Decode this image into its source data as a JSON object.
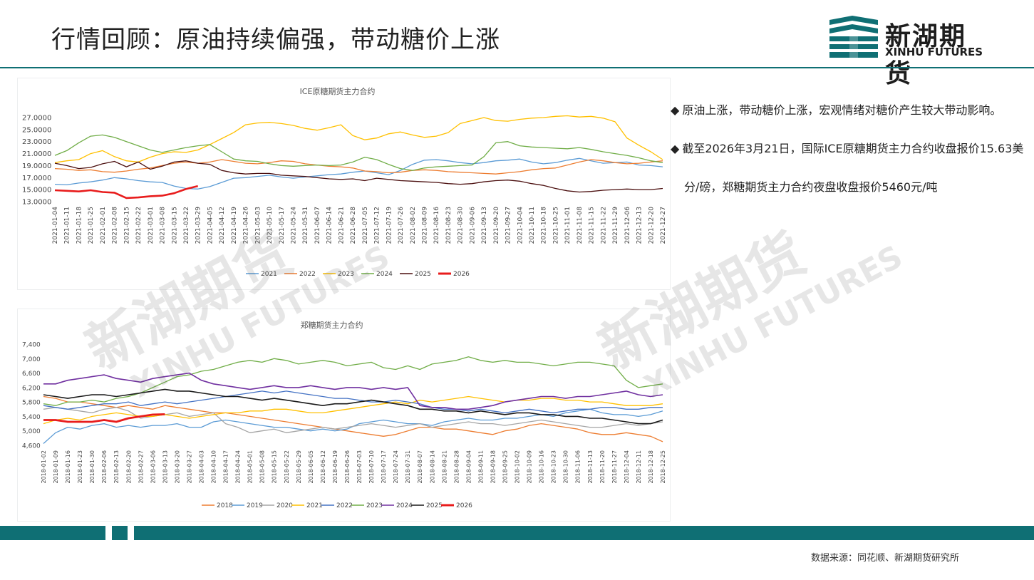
{
  "header": {
    "title": "行情回顾：原油持续偏强，带动糖价上涨",
    "logo_cn": "新湖期货",
    "logo_en": "XINHU FUTURES",
    "brand_color": "#0f6f74"
  },
  "watermark": {
    "cn": "新湖期货",
    "en": "XINHU FUTURES"
  },
  "bullets": [
    "原油上涨，带动糖价上涨，宏观情绪对糖价产生较大带动影响。",
    "截至2026年3月21日，国际ICE原糖期货主力合约收盘报价15.63美分/磅，郑糖期货主力合约夜盘收盘报价5460元/吨"
  ],
  "footer": {
    "source": "数据来源：同花顺、新湖期货研究所"
  },
  "chart_data": [
    {
      "type": "line",
      "title": "ICE原糖期货主力合约",
      "ylim": [
        13,
        27
      ],
      "yticks": [
        "27.0000",
        "25.0000",
        "23.0000",
        "21.0000",
        "19.0000",
        "17.0000",
        "15.0000",
        "13.0000"
      ],
      "x_ticks": [
        "2021-01-04",
        "2021-01-11",
        "2021-01-18",
        "2021-01-25",
        "2021-02-01",
        "2021-02-08",
        "2021-02-15",
        "2021-02-22",
        "2021-03-01",
        "2021-03-08",
        "2021-03-15",
        "2021-03-22",
        "2021-03-29",
        "2021-04-05",
        "2021-04-12",
        "2021-04-19",
        "2021-04-26",
        "2021-05-03",
        "2021-05-10",
        "2021-05-17",
        "2021-05-24",
        "2021-05-31",
        "2021-06-07",
        "2021-06-14",
        "2021-06-21",
        "2021-06-28",
        "2021-07-05",
        "2021-07-12",
        "2021-07-19",
        "2021-07-26",
        "2021-08-02",
        "2021-08-09",
        "2021-08-16",
        "2021-08-23",
        "2021-08-30",
        "2021-09-06",
        "2021-09-13",
        "2021-09-20",
        "2021-09-27",
        "2021-10-04",
        "2021-10-11",
        "2021-10-18",
        "2021-10-25",
        "2021-11-01",
        "2021-11-08",
        "2021-11-15",
        "2021-11-22",
        "2021-11-29",
        "2021-12-06",
        "2021-12-13",
        "2021-12-20",
        "2021-12-27"
      ],
      "series": [
        {
          "name": "2021",
          "color": "#5b9bd5",
          "width": 1.3,
          "values": [
            15.9,
            15.8,
            16.1,
            16.3,
            16.6,
            17.0,
            16.8,
            16.5,
            16.3,
            16.2,
            15.6,
            15.2,
            15.1,
            15.5,
            16.2,
            16.9,
            17.0,
            17.2,
            17.4,
            17.1,
            16.9,
            17.1,
            17.3,
            17.5,
            17.6,
            17.9,
            18.1,
            17.8,
            17.5,
            18.2,
            19.2,
            19.9,
            20.0,
            19.8,
            19.5,
            19.3,
            19.5,
            19.8,
            19.9,
            20.1,
            19.6,
            19.3,
            19.5,
            19.9,
            20.2,
            19.8,
            19.4,
            19.5,
            19.6,
            19.1,
            19.0,
            18.8
          ]
        },
        {
          "name": "2022",
          "color": "#ed7d31",
          "width": 1.3,
          "values": [
            18.5,
            18.4,
            18.2,
            18.3,
            18.0,
            17.9,
            18.1,
            18.4,
            18.6,
            19.0,
            19.4,
            19.6,
            19.4,
            19.6,
            20.0,
            19.7,
            19.4,
            19.3,
            19.5,
            19.8,
            19.7,
            19.3,
            19.1,
            18.9,
            18.8,
            18.6,
            18.1,
            18.0,
            17.8,
            17.9,
            18.2,
            18.3,
            18.2,
            18.0,
            17.9,
            17.8,
            17.7,
            17.6,
            17.8,
            18.0,
            18.3,
            18.5,
            18.6,
            19.1,
            19.6,
            20.0,
            19.8,
            19.5,
            19.3,
            19.4,
            19.6,
            19.8
          ]
        },
        {
          "name": "2023",
          "color": "#ffc000",
          "width": 1.3,
          "values": [
            19.5,
            19.8,
            20.0,
            21.0,
            21.5,
            20.5,
            19.8,
            19.6,
            20.4,
            21.0,
            21.3,
            21.2,
            21.6,
            22.5,
            23.5,
            24.5,
            25.8,
            26.1,
            26.2,
            26.0,
            25.7,
            25.2,
            24.9,
            25.3,
            25.8,
            24.0,
            23.3,
            23.6,
            24.3,
            24.6,
            24.1,
            23.7,
            23.9,
            24.5,
            26.0,
            26.5,
            27.0,
            26.5,
            26.4,
            26.7,
            26.9,
            27.0,
            27.2,
            27.3,
            27.1,
            27.2,
            26.9,
            26.3,
            23.6,
            22.4,
            21.3,
            20.0
          ]
        },
        {
          "name": "2024",
          "color": "#70ad47",
          "width": 1.3,
          "values": [
            20.7,
            21.5,
            22.8,
            23.9,
            24.1,
            23.7,
            23.0,
            22.3,
            21.6,
            21.2,
            21.6,
            22.0,
            22.3,
            22.5,
            21.3,
            20.1,
            19.8,
            19.7,
            19.3,
            19.0,
            18.9,
            19.0,
            19.1,
            19.0,
            19.1,
            19.6,
            20.4,
            20.0,
            19.2,
            18.5,
            18.2,
            18.6,
            18.8,
            18.9,
            19.0,
            19.1,
            20.5,
            22.8,
            23.0,
            22.3,
            22.1,
            22.0,
            21.9,
            21.8,
            22.0,
            21.7,
            21.3,
            21.0,
            20.7,
            20.3,
            19.8,
            19.5
          ]
        },
        {
          "name": "2025",
          "color": "#4b0f0f",
          "width": 1.3,
          "values": [
            19.4,
            19.0,
            18.5,
            18.7,
            19.3,
            19.7,
            18.8,
            19.6,
            18.4,
            18.9,
            19.6,
            19.8,
            19.4,
            19.2,
            18.2,
            17.8,
            17.6,
            17.7,
            17.7,
            17.4,
            17.3,
            17.2,
            17.0,
            16.8,
            16.7,
            16.8,
            16.5,
            16.9,
            16.7,
            16.5,
            16.4,
            16.3,
            16.2,
            16.0,
            15.9,
            16.0,
            16.3,
            16.5,
            16.6,
            16.4,
            16.0,
            15.7,
            15.2,
            14.8,
            14.6,
            14.7,
            14.9,
            15.0,
            15.1,
            15.0,
            15.0,
            15.2
          ]
        },
        {
          "name": "2026",
          "color": "#e81c1c",
          "width": 2.6,
          "values": [
            14.9,
            14.8,
            14.7,
            14.9,
            14.6,
            14.5,
            13.6,
            13.7,
            13.9,
            14.0,
            14.4,
            15.1,
            15.6
          ]
        }
      ],
      "legend": "bottom"
    },
    {
      "type": "line",
      "title": "郑糖期货主力合约",
      "ylim": [
        4600,
        7400
      ],
      "yticks": [
        "7,400",
        "7,000",
        "6,600",
        "6,200",
        "5,800",
        "5,400",
        "5,000",
        "4,600"
      ],
      "x_ticks": [
        "2018-01-02",
        "2018-01-09",
        "2018-01-16",
        "2018-01-23",
        "2018-01-30",
        "2018-02-06",
        "2018-02-13",
        "2018-02-20",
        "2018-02-27",
        "2018-03-06",
        "2018-03-13",
        "2018-03-20",
        "2018-03-27",
        "2018-04-03",
        "2018-04-10",
        "2018-04-17",
        "2018-04-24",
        "2018-05-01",
        "2018-05-08",
        "2018-05-15",
        "2018-05-22",
        "2018-05-29",
        "2018-06-05",
        "2018-06-12",
        "2018-06-19",
        "2018-06-26",
        "2018-07-03",
        "2018-07-10",
        "2018-07-17",
        "2018-07-24",
        "2018-07-31",
        "2018-08-07",
        "2018-08-14",
        "2018-08-21",
        "2018-08-28",
        "2018-09-04",
        "2018-09-11",
        "2018-09-18",
        "2018-09-25",
        "2018-10-02",
        "2018-10-09",
        "2018-10-16",
        "2018-10-23",
        "2018-10-30",
        "2018-11-06",
        "2018-11-13",
        "2018-11-20",
        "2018-11-27",
        "2018-12-04",
        "2018-12-11",
        "2018-12-18",
        "2018-12-25"
      ],
      "series": [
        {
          "name": "2018",
          "color": "#ed7d31",
          "width": 1.3,
          "values": [
            5950,
            5900,
            5800,
            5800,
            5750,
            5700,
            5650,
            5700,
            5650,
            5600,
            5700,
            5650,
            5600,
            5550,
            5500,
            5500,
            5450,
            5400,
            5350,
            5300,
            5250,
            5200,
            5150,
            5100,
            5050,
            5000,
            4950,
            4900,
            4850,
            4900,
            5000,
            5100,
            5100,
            5050,
            5050,
            5000,
            4950,
            4900,
            5000,
            5050,
            5150,
            5200,
            5150,
            5100,
            5050,
            4950,
            4900,
            4900,
            4950,
            4900,
            4850,
            4700
          ]
        },
        {
          "name": "2019",
          "color": "#5b9bd5",
          "width": 1.3,
          "values": [
            4650,
            4950,
            5100,
            5050,
            5150,
            5200,
            5100,
            5150,
            5100,
            5150,
            5150,
            5200,
            5100,
            5100,
            5250,
            5300,
            5250,
            5200,
            5150,
            5100,
            5100,
            5050,
            5000,
            5050,
            5000,
            5050,
            5200,
            5250,
            5300,
            5250,
            5200,
            5200,
            5150,
            5250,
            5300,
            5350,
            5300,
            5300,
            5350,
            5350,
            5400,
            5450,
            5400,
            5500,
            5550,
            5600,
            5500,
            5450,
            5450,
            5400,
            5450,
            5550
          ]
        },
        {
          "name": "2020",
          "color": "#a5a5a5",
          "width": 1.3,
          "values": [
            5600,
            5650,
            5600,
            5550,
            5500,
            5600,
            5650,
            5550,
            5350,
            5400,
            5450,
            5500,
            5400,
            5450,
            5500,
            5200,
            5100,
            4950,
            5000,
            5050,
            4950,
            5000,
            5050,
            5100,
            5050,
            5100,
            5150,
            5200,
            5150,
            5100,
            5150,
            5200,
            5100,
            5150,
            5200,
            5250,
            5200,
            5200,
            5150,
            5200,
            5250,
            5300,
            5250,
            5200,
            5150,
            5100,
            5100,
            5150,
            5200,
            5150,
            5200,
            5250
          ]
        },
        {
          "name": "2021",
          "color": "#ffc000",
          "width": 1.3,
          "values": [
            5200,
            5300,
            5350,
            5300,
            5400,
            5450,
            5500,
            5450,
            5400,
            5400,
            5450,
            5400,
            5350,
            5400,
            5450,
            5500,
            5500,
            5550,
            5550,
            5600,
            5600,
            5550,
            5500,
            5500,
            5550,
            5600,
            5650,
            5700,
            5750,
            5800,
            5750,
            5850,
            5800,
            5850,
            5900,
            5950,
            5900,
            5850,
            5800,
            5850,
            5850,
            5900,
            5900,
            5850,
            5850,
            5800,
            5800,
            5750,
            5700,
            5700,
            5700,
            5750
          ]
        },
        {
          "name": "2022",
          "color": "#4472c4",
          "width": 1.3,
          "values": [
            5700,
            5650,
            5600,
            5650,
            5700,
            5750,
            5750,
            5800,
            5700,
            5750,
            5800,
            5750,
            5800,
            5850,
            5900,
            5950,
            6000,
            6050,
            6100,
            6050,
            6100,
            6050,
            6000,
            5950,
            5900,
            5900,
            5850,
            5800,
            5800,
            5850,
            5800,
            5750,
            5650,
            5600,
            5600,
            5550,
            5600,
            5550,
            5500,
            5550,
            5600,
            5550,
            5500,
            5550,
            5600,
            5600,
            5650,
            5650,
            5600,
            5600,
            5650,
            5650
          ]
        },
        {
          "name": "2023",
          "color": "#70ad47",
          "width": 1.3,
          "values": [
            5750,
            5700,
            5800,
            5800,
            5850,
            5800,
            5900,
            5950,
            6050,
            6200,
            6350,
            6500,
            6550,
            6650,
            6700,
            6800,
            6900,
            6950,
            6900,
            7000,
            6950,
            6850,
            6900,
            6950,
            6900,
            6800,
            6850,
            6900,
            6750,
            6700,
            6800,
            6700,
            6850,
            6900,
            6950,
            7050,
            6950,
            6900,
            6950,
            6900,
            6900,
            6850,
            6800,
            6850,
            6900,
            6900,
            6850,
            6800,
            6400,
            6200,
            6250,
            6300
          ]
        },
        {
          "name": "2024",
          "color": "#7030a0",
          "width": 1.6,
          "values": [
            6300,
            6300,
            6400,
            6450,
            6500,
            6550,
            6450,
            6400,
            6350,
            6450,
            6500,
            6550,
            6600,
            6400,
            6300,
            6250,
            6200,
            6150,
            6200,
            6250,
            6200,
            6200,
            6250,
            6200,
            6150,
            6200,
            6200,
            6150,
            6200,
            6150,
            6200,
            5700,
            5650,
            5650,
            5600,
            5600,
            5650,
            5700,
            5800,
            5850,
            5900,
            5950,
            5950,
            5900,
            5950,
            5950,
            6000,
            6050,
            6100,
            6000,
            5950,
            6000
          ]
        },
        {
          "name": "2025",
          "color": "#1a1a1a",
          "width": 1.6,
          "values": [
            6000,
            5950,
            5900,
            5950,
            6000,
            6000,
            5950,
            6000,
            6050,
            6100,
            6150,
            6100,
            6100,
            6050,
            6000,
            5950,
            5950,
            5900,
            5850,
            5900,
            5850,
            5800,
            5750,
            5700,
            5750,
            5750,
            5800,
            5850,
            5800,
            5750,
            5700,
            5600,
            5600,
            5550,
            5550,
            5500,
            5550,
            5500,
            5450,
            5500,
            5500,
            5450,
            5450,
            5400,
            5400,
            5350,
            5350,
            5300,
            5250,
            5200,
            5200,
            5300
          ]
        },
        {
          "name": "2026",
          "color": "#e81c1c",
          "width": 2.8,
          "values": [
            5300,
            5300,
            5250,
            5250,
            5250,
            5300,
            5250,
            5350,
            5400,
            5450,
            5460
          ]
        }
      ],
      "legend": "bottom"
    }
  ]
}
